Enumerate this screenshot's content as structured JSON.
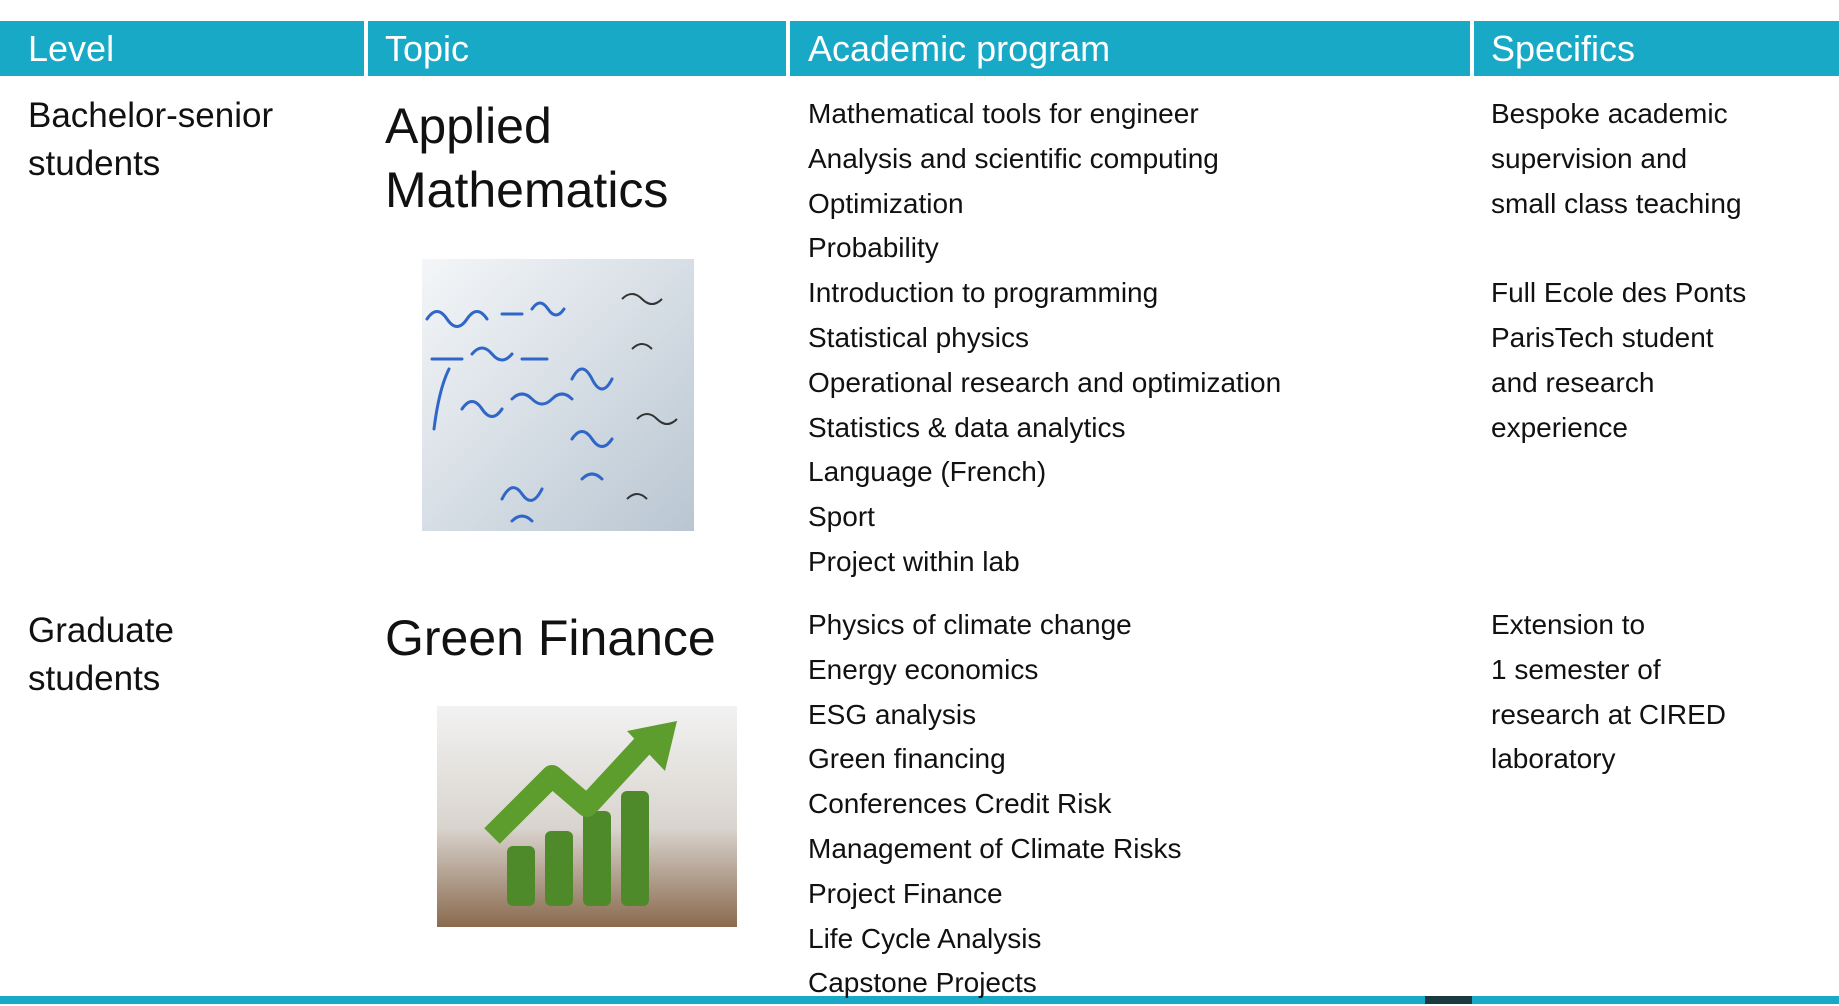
{
  "header": {
    "columns": [
      "Level",
      "Topic",
      "Academic program",
      "Specifics"
    ]
  },
  "rows": [
    {
      "level": [
        "Bachelor-senior",
        "students"
      ],
      "topic": [
        "Applied",
        "Mathematics"
      ],
      "program": [
        "Mathematical tools for engineer",
        "Analysis and scientific computing",
        "Optimization",
        "Probability",
        "Introduction to programming",
        "Statistical physics",
        "Operational research and optimization",
        "Statistics & data analytics",
        "Language (French)",
        "Sport",
        "Project within lab"
      ],
      "specifics": [
        [
          "Bespoke academic",
          "supervision and",
          "small class teaching"
        ],
        [
          "Full Ecole des Ponts",
          "ParisTech student",
          "and research",
          "experience"
        ]
      ]
    },
    {
      "level": [
        "Graduate",
        "students"
      ],
      "topic": [
        "Green Finance"
      ],
      "program": [
        "Physics of climate change",
        "Energy economics",
        "ESG analysis",
        "Green financing",
        "Conferences Credit Risk",
        "Management of Climate Risks",
        "Project Finance",
        "Life Cycle Analysis",
        "Capstone Projects"
      ],
      "specifics": [
        [
          "Extension to",
          "1 semester of",
          "research at CIRED",
          "laboratory"
        ]
      ]
    }
  ]
}
